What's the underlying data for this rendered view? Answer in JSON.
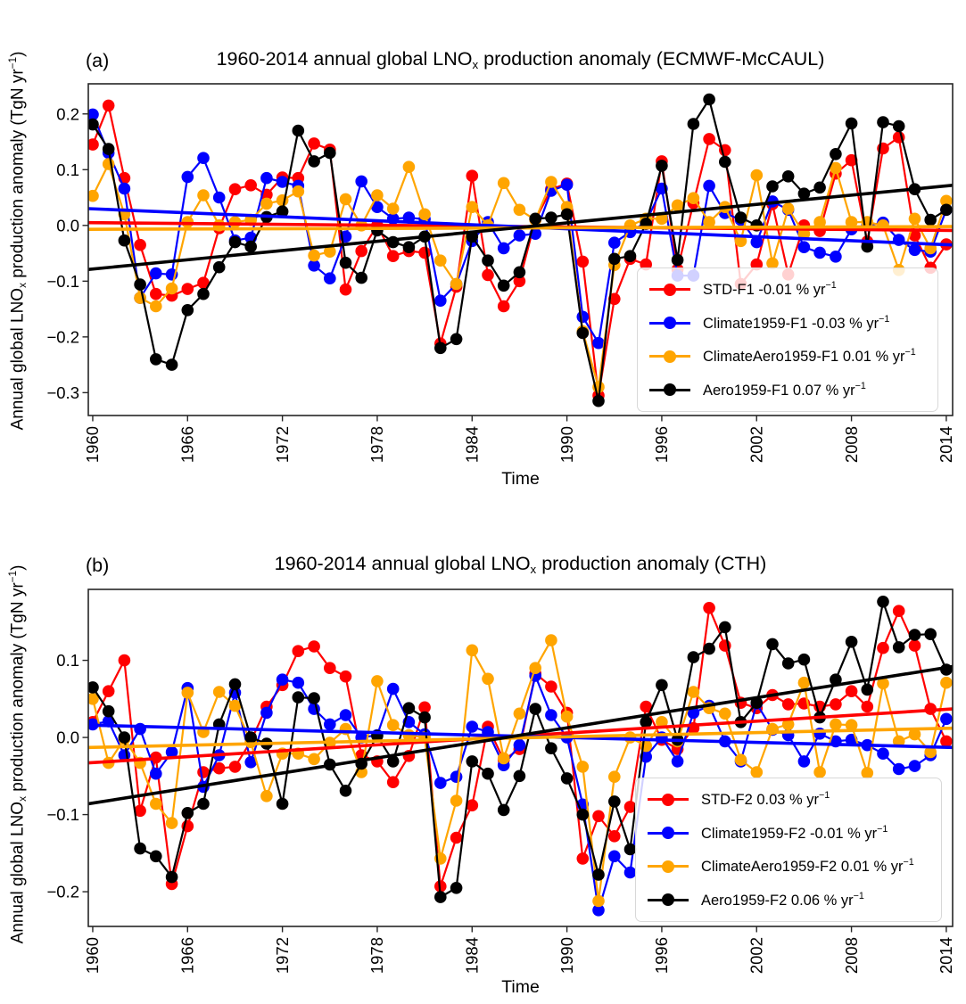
{
  "chart_data": [
    {
      "id": "a",
      "type": "line",
      "panel_label": "(a)",
      "title_pre": "1960-2014 annual global LNO",
      "title_sub": "x",
      "title_post": " production anomaly (ECMWF-McCAUL)",
      "xlabel": "Time",
      "ylabel_pre": "Annual global LNO",
      "ylabel_sub": "x",
      "ylabel_mid": " production anomaly (TgN yr",
      "ylabel_sup": "−1",
      "ylabel_post": ")",
      "x_start": 1960,
      "x_end": 2014,
      "xlim": [
        1959.72,
        2014.4
      ],
      "ylim": [
        -0.341,
        0.254
      ],
      "xticks": [
        1960,
        1966,
        1972,
        1978,
        1984,
        1990,
        1996,
        2002,
        2008,
        2014
      ],
      "xtick_labels": [
        "1960",
        "1966",
        "1972",
        "1978",
        "1984",
        "1990",
        "1996",
        "2002",
        "2008",
        "2014"
      ],
      "yticks": [
        0.2,
        0.1,
        0.0,
        -0.1,
        -0.2,
        -0.3
      ],
      "ytick_labels": [
        "0.2",
        "0.1",
        "0.0",
        "−0.1",
        "−0.2",
        "−0.3"
      ],
      "grid": false,
      "legend_position": "lower right",
      "series": [
        {
          "name": "STD-F1",
          "color": "#ff0000",
          "legend": "STD-F1 -0.01 % yr",
          "legend_sup": "−1",
          "trend": [
            0.005,
            -0.009
          ],
          "values": [
            0.145,
            0.215,
            0.085,
            -0.035,
            -0.123,
            -0.126,
            -0.114,
            -0.103,
            -0.005,
            0.065,
            0.072,
            0.055,
            0.086,
            0.085,
            0.147,
            0.136,
            -0.115,
            -0.046,
            0.0,
            -0.055,
            -0.046,
            -0.049,
            -0.212,
            -0.11,
            0.089,
            -0.089,
            -0.145,
            -0.1,
            0.01,
            0.065,
            0.075,
            -0.065,
            -0.305,
            -0.132,
            -0.06,
            -0.07,
            0.115,
            -0.079,
            0.04,
            0.155,
            0.135,
            -0.105,
            -0.07,
            0.038,
            -0.088,
            0.0,
            -0.01,
            0.093,
            0.117,
            -0.029,
            0.138,
            0.158,
            -0.018,
            -0.076,
            -0.034
          ]
        },
        {
          "name": "Climate1959-F1",
          "color": "#0000ff",
          "legend": "Climate1959-F1 -0.03 % yr",
          "legend_sup": "−1",
          "trend": [
            0.03,
            -0.035
          ],
          "values": [
            0.199,
            0.13,
            0.066,
            -0.13,
            -0.086,
            -0.088,
            0.087,
            0.121,
            0.05,
            -0.027,
            -0.022,
            0.085,
            0.078,
            0.071,
            -0.072,
            -0.095,
            -0.02,
            0.079,
            0.033,
            0.012,
            0.014,
            0.011,
            -0.135,
            -0.105,
            -0.028,
            0.006,
            -0.041,
            -0.018,
            -0.015,
            0.062,
            0.073,
            -0.164,
            -0.211,
            -0.031,
            -0.012,
            0.006,
            0.066,
            -0.09,
            -0.09,
            0.071,
            0.022,
            0.01,
            -0.03,
            0.043,
            0.028,
            -0.039,
            -0.049,
            -0.056,
            -0.007,
            0.0,
            0.005,
            -0.026,
            -0.044,
            -0.047,
            0.028
          ]
        },
        {
          "name": "ClimateAero1959-F1",
          "color": "#ffa500",
          "legend": "ClimateAero1959-F1 0.01 % yr",
          "legend_sup": "−1",
          "trend": [
            -0.007,
            -0.002
          ],
          "values": [
            0.053,
            0.11,
            0.02,
            -0.13,
            -0.145,
            -0.113,
            0.006,
            0.054,
            0.0,
            0.006,
            0.01,
            0.039,
            0.045,
            0.061,
            -0.054,
            -0.047,
            0.047,
            0.0,
            0.054,
            0.03,
            0.105,
            0.02,
            -0.063,
            -0.105,
            0.033,
            0.0,
            0.076,
            0.028,
            0.01,
            0.078,
            0.033,
            -0.19,
            -0.29,
            -0.071,
            0.0,
            0.012,
            0.012,
            0.036,
            0.049,
            0.006,
            0.033,
            -0.028,
            0.09,
            -0.068,
            0.03,
            -0.015,
            0.006,
            0.103,
            0.006,
            0.006,
            0.0,
            -0.08,
            0.012,
            -0.041,
            0.044
          ]
        },
        {
          "name": "Aero1959-F1",
          "color": "#000000",
          "legend": "Aero1959-F1 0.07 % yr",
          "legend_sup": "−1",
          "trend": [
            -0.079,
            0.072
          ],
          "values": [
            0.181,
            0.137,
            -0.027,
            -0.106,
            -0.24,
            -0.25,
            -0.152,
            -0.123,
            -0.075,
            -0.03,
            -0.038,
            0.015,
            0.025,
            0.17,
            0.115,
            0.13,
            -0.067,
            -0.094,
            -0.009,
            -0.03,
            -0.039,
            -0.02,
            -0.22,
            -0.204,
            -0.02,
            -0.063,
            -0.108,
            -0.084,
            0.012,
            0.014,
            0.02,
            -0.193,
            -0.315,
            -0.06,
            -0.055,
            0.003,
            0.107,
            -0.062,
            0.182,
            0.226,
            0.114,
            0.014,
            0.0,
            0.07,
            0.088,
            0.057,
            0.068,
            0.128,
            0.183,
            -0.038,
            0.185,
            0.178,
            0.065,
            0.01,
            0.028
          ]
        }
      ]
    },
    {
      "id": "b",
      "type": "line",
      "panel_label": "(b)",
      "title_pre": "1960-2014 annual global LNO",
      "title_sub": "x",
      "title_post": " production anomaly (CTH)",
      "xlabel": "Time",
      "ylabel_pre": "Annual global LNO",
      "ylabel_sub": "x",
      "ylabel_mid": " production anomaly (TgN yr",
      "ylabel_sup": "−1",
      "ylabel_post": ")",
      "x_start": 1960,
      "x_end": 2014,
      "xlim": [
        1959.72,
        2014.4
      ],
      "ylim": [
        -0.245,
        0.192
      ],
      "xticks": [
        1960,
        1966,
        1972,
        1978,
        1984,
        1990,
        1996,
        2002,
        2008,
        2014
      ],
      "xtick_labels": [
        "1960",
        "1966",
        "1972",
        "1978",
        "1984",
        "1990",
        "1996",
        "2002",
        "2008",
        "2014"
      ],
      "yticks": [
        0.1,
        0.0,
        -0.1,
        -0.2
      ],
      "ytick_labels": [
        "0.1",
        "0.0",
        "−0.1",
        "−0.2"
      ],
      "grid": false,
      "legend_position": "lower right",
      "series": [
        {
          "name": "STD-F2",
          "color": "#ff0000",
          "legend": "STD-F2 0.03 % yr",
          "legend_sup": "−1",
          "trend": [
            -0.033,
            0.037
          ],
          "values": [
            0.02,
            0.06,
            0.1,
            -0.095,
            -0.026,
            -0.19,
            -0.115,
            -0.045,
            -0.04,
            -0.038,
            -0.005,
            0.04,
            0.068,
            0.112,
            0.118,
            0.09,
            0.079,
            -0.023,
            -0.031,
            -0.058,
            -0.024,
            0.039,
            -0.193,
            -0.13,
            -0.088,
            0.014,
            -0.029,
            -0.015,
            0.083,
            0.066,
            0.032,
            -0.157,
            -0.102,
            -0.128,
            -0.09,
            0.04,
            -0.003,
            -0.015,
            0.012,
            0.168,
            0.119,
            0.045,
            0.038,
            0.055,
            0.043,
            0.044,
            0.04,
            0.043,
            0.06,
            0.04,
            0.116,
            0.164,
            0.119,
            0.037,
            -0.005
          ]
        },
        {
          "name": "Climate1959-F2",
          "color": "#0000ff",
          "legend": "Climate1959-F2 -0.01 % yr",
          "legend_sup": "−1",
          "trend": [
            0.016,
            -0.013
          ],
          "values": [
            0.017,
            0.021,
            -0.023,
            0.011,
            -0.047,
            -0.019,
            0.064,
            -0.064,
            -0.023,
            0.058,
            -0.032,
            0.032,
            0.075,
            0.071,
            0.037,
            0.017,
            0.029,
            0.0,
            0.003,
            0.063,
            0.02,
            0.004,
            -0.059,
            -0.051,
            0.014,
            0.007,
            -0.036,
            -0.01,
            0.08,
            0.029,
            0.0,
            -0.087,
            -0.224,
            -0.154,
            -0.175,
            -0.025,
            0.0,
            -0.031,
            0.032,
            0.041,
            -0.005,
            -0.031,
            0.044,
            0.01,
            0.003,
            -0.031,
            0.005,
            -0.005,
            -0.003,
            -0.01,
            -0.021,
            -0.041,
            -0.037,
            -0.023,
            0.024
          ]
        },
        {
          "name": "ClimateAero1959-F2",
          "color": "#ffa500",
          "legend": "ClimateAero1959-F2 0.01 % yr",
          "legend_sup": "−1",
          "trend": [
            -0.013,
            0.012
          ],
          "values": [
            0.05,
            -0.033,
            -0.002,
            -0.033,
            -0.086,
            -0.111,
            0.058,
            0.007,
            0.059,
            0.041,
            -0.006,
            -0.076,
            -0.021,
            -0.021,
            -0.028,
            -0.007,
            0.011,
            -0.045,
            0.073,
            0.016,
            0.003,
            0.0,
            -0.157,
            -0.082,
            0.113,
            0.076,
            -0.027,
            0.031,
            0.09,
            0.126,
            0.027,
            -0.038,
            -0.212,
            -0.051,
            0.0,
            -0.011,
            0.02,
            -0.005,
            0.059,
            0.038,
            0.031,
            -0.029,
            -0.045,
            0.011,
            0.017,
            0.071,
            -0.045,
            0.017,
            0.016,
            -0.046,
            0.07,
            -0.005,
            0.004,
            -0.019,
            0.071
          ]
        },
        {
          "name": "Aero1959-F2",
          "color": "#000000",
          "legend": "Aero1959-F2 0.06 % yr",
          "legend_sup": "−1",
          "trend": [
            -0.086,
            0.092
          ],
          "values": [
            0.065,
            0.034,
            0.0,
            -0.144,
            -0.154,
            -0.181,
            -0.098,
            -0.086,
            0.017,
            0.069,
            0.0,
            -0.008,
            -0.086,
            0.052,
            0.051,
            -0.035,
            -0.069,
            -0.034,
            0.002,
            -0.031,
            0.038,
            0.026,
            -0.207,
            -0.195,
            -0.031,
            -0.047,
            -0.094,
            -0.05,
            0.037,
            -0.014,
            -0.053,
            -0.1,
            -0.178,
            -0.083,
            -0.145,
            0.02,
            0.068,
            -0.003,
            0.104,
            0.115,
            0.143,
            0.02,
            0.045,
            0.121,
            0.096,
            0.101,
            0.026,
            0.075,
            0.124,
            0.062,
            0.176,
            0.117,
            0.133,
            0.134,
            0.088
          ]
        }
      ]
    }
  ]
}
